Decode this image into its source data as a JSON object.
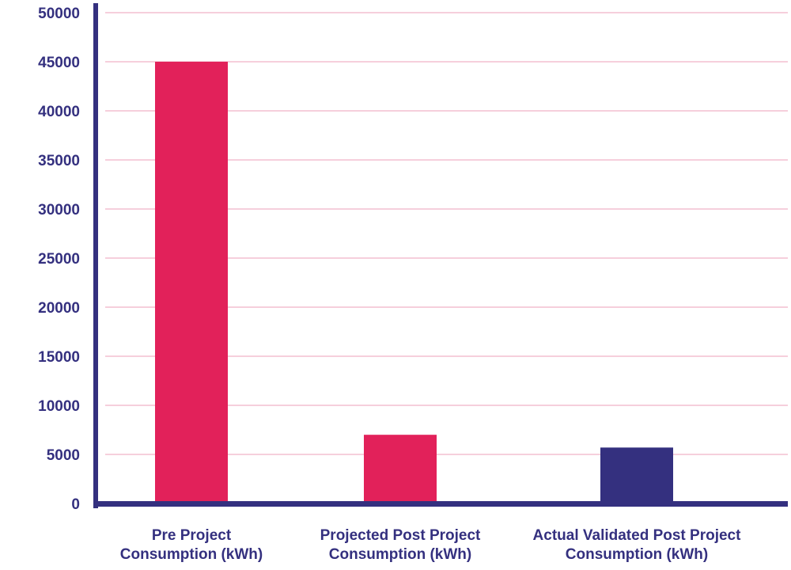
{
  "chart_data": {
    "type": "bar",
    "title": "",
    "xlabel": "",
    "ylabel": "",
    "ylim": [
      0,
      50000
    ],
    "yticks": [
      0,
      5000,
      10000,
      15000,
      20000,
      25000,
      30000,
      35000,
      40000,
      45000,
      50000
    ],
    "grid": true,
    "categories": [
      {
        "line1": "Pre Project",
        "line2": "Consumption (kWh)"
      },
      {
        "line1": "Projected Post Project",
        "line2": "Consumption (kWh)"
      },
      {
        "line1": "Actual Validated Post Project",
        "line2": "Consumption (kWh)"
      }
    ],
    "values": [
      45000,
      7000,
      5700
    ],
    "bar_colors": [
      "#e2215a",
      "#e2215a",
      "#34307f"
    ]
  },
  "colors": {
    "axis": "#34307f",
    "grid": "#f6cfdc",
    "text": "#34307f"
  }
}
